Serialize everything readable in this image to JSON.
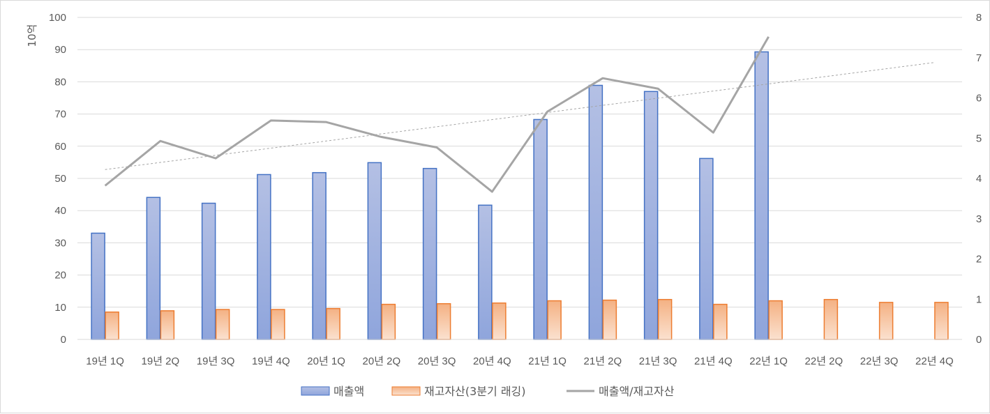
{
  "chart_data": {
    "type": "bar",
    "categories": [
      "19년 1Q",
      "19년 2Q",
      "19년 3Q",
      "19년 4Q",
      "20년 1Q",
      "20년 2Q",
      "20년 3Q",
      "20년 4Q",
      "21년 1Q",
      "21년 2Q",
      "21년 3Q",
      "21년 4Q",
      "22년 1Q",
      "22년 2Q",
      "22년 3Q",
      "22년 4Q"
    ],
    "y_unit_label": "10억",
    "ylim": [
      0,
      100
    ],
    "y_ticks": [
      "0",
      "10",
      "20",
      "30",
      "40",
      "50",
      "60",
      "70",
      "80",
      "90",
      "100"
    ],
    "y2lim": [
      0,
      8
    ],
    "y2_ticks": [
      "0",
      "1",
      "2",
      "3",
      "4",
      "5",
      "6",
      "7",
      "8"
    ],
    "grid": true,
    "legend_position": "bottom",
    "series": [
      {
        "name": "매출액",
        "type": "bar",
        "axis": "left",
        "values": [
          33.0,
          44.1,
          42.3,
          51.2,
          51.8,
          54.9,
          53.1,
          41.7,
          68.3,
          78.9,
          77.0,
          56.2,
          89.3,
          null,
          null,
          null
        ]
      },
      {
        "name": "재고자산(3분기 래깅)",
        "type": "bar",
        "axis": "left",
        "values": [
          8.5,
          8.9,
          9.3,
          9.3,
          9.6,
          10.9,
          11.1,
          11.3,
          12.0,
          12.2,
          12.4,
          10.9,
          12.0,
          12.4,
          11.5,
          11.5
        ]
      },
      {
        "name": "매출액/재고자산",
        "type": "line",
        "axis": "right",
        "values": [
          3.82,
          4.93,
          4.5,
          5.44,
          5.4,
          5.03,
          4.77,
          3.67,
          5.66,
          6.49,
          6.23,
          5.14,
          7.52,
          null,
          null,
          null
        ]
      }
    ],
    "trendline": {
      "axis": "right",
      "start_value": 4.22,
      "end_value": 6.88
    }
  },
  "colors": {
    "bar1_fill_top": "#b4c0e4",
    "bar1_fill_bottom": "#8fa5dc",
    "bar1_border": "#4472c4",
    "bar2_fill_top": "#f4b183",
    "bar2_fill_bottom": "#fbe1cf",
    "bar2_border": "#ed7d31",
    "line": "#a5a5a5",
    "trend": "#a5a5a5",
    "grid": "#d9d9d9",
    "text": "#595959"
  }
}
